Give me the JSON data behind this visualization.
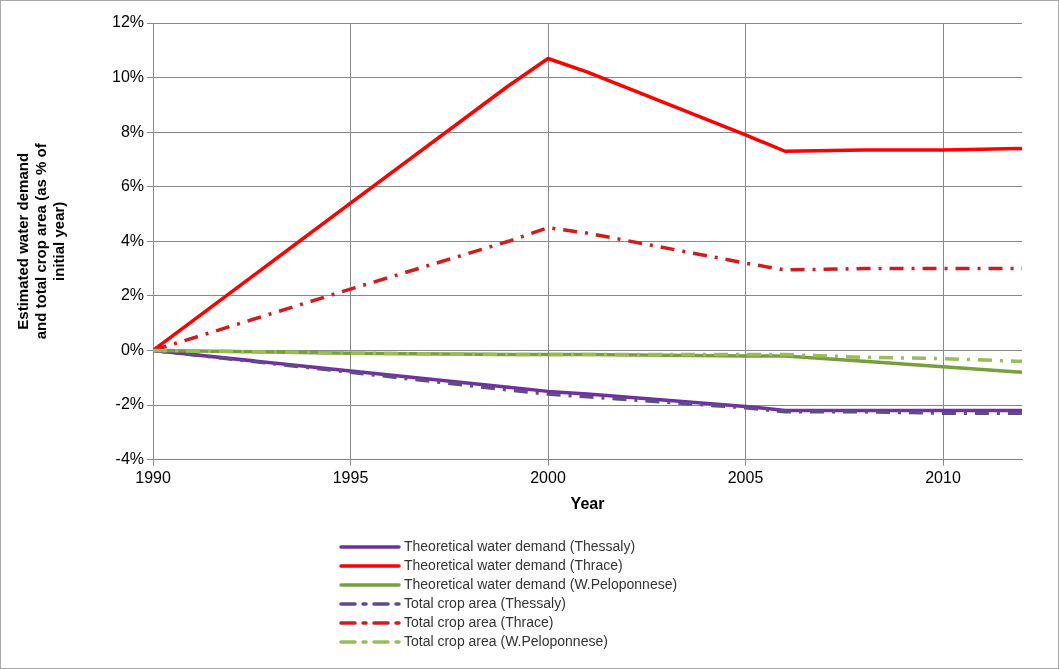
{
  "chart_data": {
    "type": "line",
    "xlabel": "Year",
    "ylabel": "Estimated water demand and total crop area (as % of initial year)",
    "x": [
      1990,
      1995,
      1999,
      2000,
      2001,
      2005,
      2006,
      2008,
      2010,
      2012
    ],
    "xlim": [
      1990,
      2012
    ],
    "xticks": [
      1990,
      1995,
      2000,
      2005,
      2010
    ],
    "ylim": [
      -4,
      12
    ],
    "yticks": [
      {
        "value": -4,
        "label": "-4%"
      },
      {
        "value": -2,
        "label": "-2%"
      },
      {
        "value": 0,
        "label": "0%"
      },
      {
        "value": 2,
        "label": "2%"
      },
      {
        "value": 4,
        "label": "4%"
      },
      {
        "value": 6,
        "label": "6%"
      },
      {
        "value": 8,
        "label": "8%"
      },
      {
        "value": 10,
        "label": "10%"
      },
      {
        "value": 12,
        "label": "12%"
      }
    ],
    "grid": true,
    "legend": "bottom",
    "marker": "none",
    "series": [
      {
        "name": "Theoretical water demand (Thessaly)",
        "color": "#7030a0",
        "line_style": "solid",
        "values": [
          0,
          -0.75,
          -1.35,
          -1.5,
          -1.6,
          -2.05,
          -2.2,
          -2.2,
          -2.2,
          -2.2
        ]
      },
      {
        "name": "Theoretical water demand (Thrace)",
        "color": "#ff0000",
        "line_style": "solid",
        "values": [
          0,
          5.4,
          9.7,
          10.7,
          10.2,
          7.9,
          7.3,
          7.35,
          7.35,
          7.4
        ]
      },
      {
        "name": "Theoretical water demand (W.Peloponnese)",
        "color": "#77a03c",
        "line_style": "solid",
        "values": [
          0,
          -0.1,
          -0.15,
          -0.15,
          -0.15,
          -0.2,
          -0.2,
          -0.4,
          -0.6,
          -0.8
        ]
      },
      {
        "name": "Total crop area (Thessaly)",
        "color": "#5f4b8b",
        "line_style": "dashed",
        "values": [
          0,
          -0.8,
          -1.45,
          -1.6,
          -1.7,
          -2.1,
          -2.25,
          -2.25,
          -2.3,
          -2.3
        ]
      },
      {
        "name": "Total crop area (Thrace)",
        "color": "#d01c1c",
        "line_style": "dashed",
        "values": [
          0,
          2.25,
          4.0,
          4.5,
          4.3,
          3.2,
          2.95,
          3.0,
          3.0,
          3.0
        ]
      },
      {
        "name": "Total crop area (W.Peloponnese)",
        "color": "#9bbb59",
        "line_style": "dashed",
        "values": [
          0,
          -0.1,
          -0.15,
          -0.15,
          -0.15,
          -0.15,
          -0.15,
          -0.25,
          -0.3,
          -0.4
        ]
      }
    ]
  }
}
